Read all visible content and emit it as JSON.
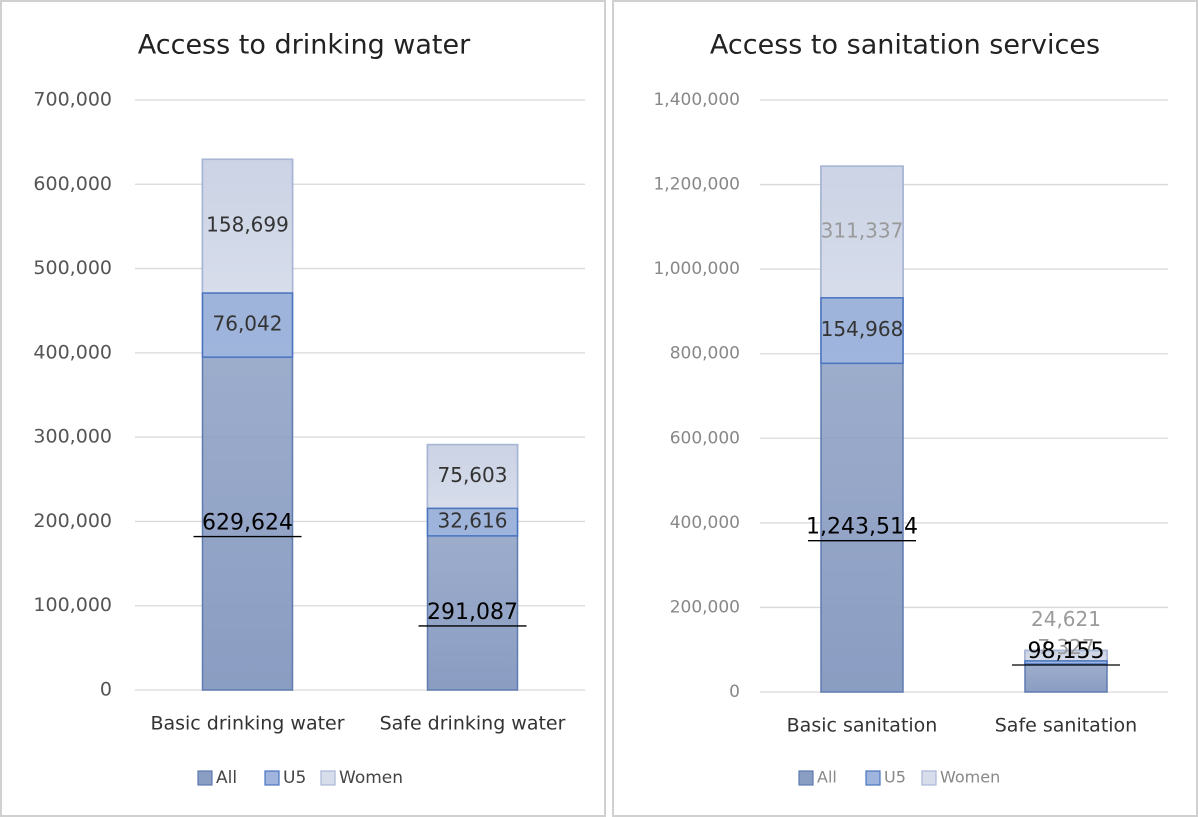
{
  "chart_data": [
    {
      "type": "bar",
      "title": "Access to drinking water",
      "categories": [
        "Basic drinking water",
        "Safe drinking water"
      ],
      "series": [
        {
          "name": "All",
          "color": "#8a9dc2",
          "values": [
            629624,
            291087
          ],
          "value_labels": [
            "629,624",
            "291,087"
          ]
        },
        {
          "name": "U5",
          "color": "#9fb5dd",
          "values": [
            76042,
            32616
          ],
          "value_labels": [
            "76,042",
            "32,616"
          ]
        },
        {
          "name": "Women",
          "color": "#d7ddeb",
          "values": [
            158699,
            75603
          ],
          "value_labels": [
            "158,699",
            "75,603"
          ]
        }
      ],
      "ylim": [
        0,
        700000
      ],
      "yticks": [
        0,
        {
          "value": 100000,
          "label": "100,000"
        },
        {
          "value": 200000,
          "label": "200,000"
        },
        {
          "value": 300000,
          "label": "300,000"
        },
        {
          "value": 400000,
          "label": "400,000"
        },
        {
          "value": 500000,
          "label": "500,000"
        },
        {
          "value": 600000,
          "label": "600,000"
        },
        {
          "value": 700000,
          "label": "700,000"
        }
      ],
      "grid": true,
      "legend": "bottom"
    },
    {
      "type": "bar",
      "title": "Access to sanitation services",
      "categories": [
        "Basic sanitation",
        "Safe sanitation"
      ],
      "series": [
        {
          "name": "All",
          "color": "#8a9dc2",
          "values": [
            1243514,
            98155
          ],
          "value_labels": [
            "1,243,514",
            "98,155"
          ]
        },
        {
          "name": "U5",
          "color": "#9fb5dd",
          "values": [
            154968,
            7327
          ],
          "value_labels": [
            "154,968",
            "7,327"
          ]
        },
        {
          "name": "Women",
          "color": "#d7ddeb",
          "values": [
            311337,
            24621
          ],
          "value_labels": [
            "311,337",
            "24,621"
          ]
        }
      ],
      "ylim": [
        0,
        1400000
      ],
      "yticks": [
        0,
        {
          "value": 200000,
          "label": "200,000"
        },
        {
          "value": 400000,
          "label": "400,000"
        },
        {
          "value": 600000,
          "label": "600,000"
        },
        {
          "value": 800000,
          "label": "800,000"
        },
        {
          "value": 1000000,
          "label": "1,000,000"
        },
        {
          "value": 1200000,
          "label": "1,200,000"
        },
        {
          "value": 1400000,
          "label": "1,400,000"
        }
      ],
      "grid": true,
      "legend": "bottom"
    }
  ]
}
